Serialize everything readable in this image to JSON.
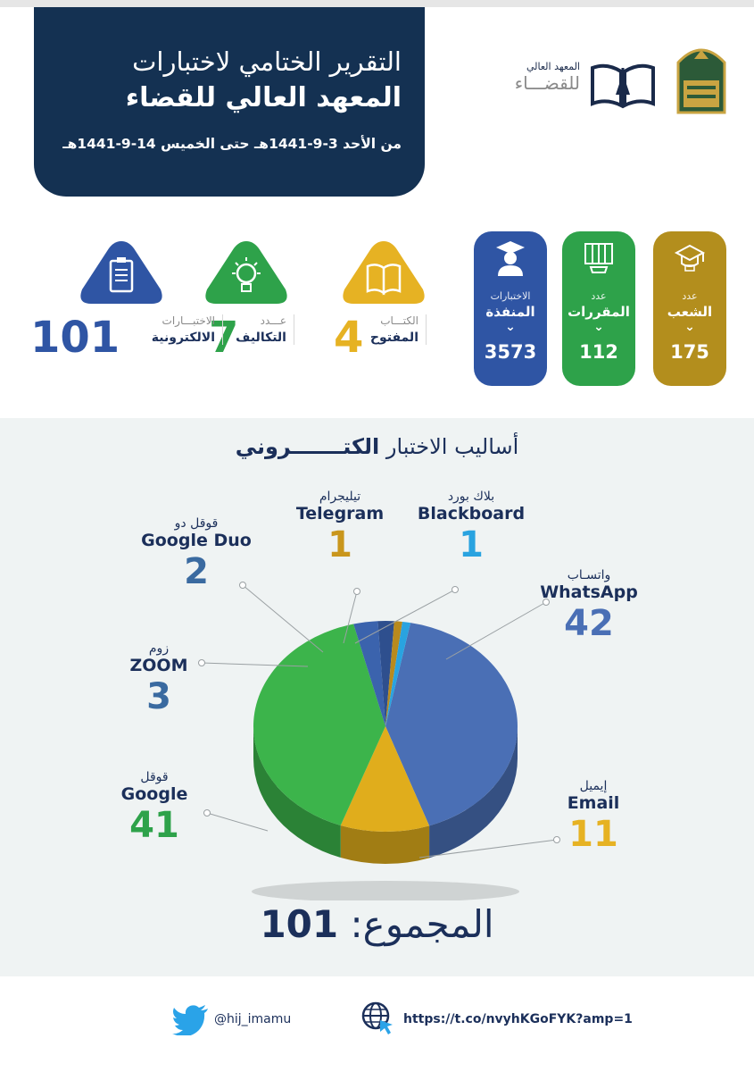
{
  "header": {
    "title_line1": "التقرير الختامي لاختبارات",
    "title_line2": "المعهد العالي للقضاء",
    "date_range": "من الأحد 3-9-1441هـ حتى الخميس 14-9-1441هـ"
  },
  "logo": {
    "institute_small": "المعهد العالي",
    "institute_big": "للقضـــاء"
  },
  "stats_pills": [
    {
      "label1": "عدد",
      "label2": "الشعب",
      "value": "175",
      "color": "#b38e1d",
      "icon": "graduation-building-icon"
    },
    {
      "label1": "عدد",
      "label2": "المقررات",
      "value": "112",
      "color": "#2ea24a",
      "icon": "books-icon"
    },
    {
      "label1": "الاختبارات",
      "label2": "المنفذة",
      "value": "3573",
      "color": "#2f55a4",
      "icon": "graduate-icon"
    }
  ],
  "stats_side": [
    {
      "label1": "الكتـــاب",
      "label2": "المفتوح",
      "value": "4",
      "color": "#e6b223",
      "icon": "open-book-icon"
    },
    {
      "label1": "عـــدد",
      "label2": "التكاليف",
      "value": "7",
      "color": "#2ea24a",
      "icon": "idea-bulb-icon"
    },
    {
      "label1": "الاختبـــارات",
      "label2": "الالكترونية",
      "value": "101",
      "color": "#2f55a4",
      "icon": "clipboard-icon"
    }
  ],
  "chart_title_light": "أساليب الاختبار",
  "chart_title_bold": "الكتـــــــروني",
  "chart_data": {
    "type": "pie",
    "title": "أساليب الاختبار الكتـــــــروني",
    "slices": [
      {
        "name_ar": "واتسـاب",
        "name_en": "WhatsApp",
        "value": 42,
        "color": "#4a6fb5",
        "value_color": "#4a6fb5"
      },
      {
        "name_ar": "إيميل",
        "name_en": "Email",
        "value": 11,
        "color": "#e0ad1c",
        "value_color": "#e6b223"
      },
      {
        "name_ar": "قوقل",
        "name_en": "Google",
        "value": 41,
        "color": "#3cb44b",
        "value_color": "#2ea24a"
      },
      {
        "name_ar": "زوم",
        "name_en": "ZOOM",
        "value": 3,
        "color": "#3b63ad",
        "value_color": "#3a6aa0"
      },
      {
        "name_ar": "قوقل دو",
        "name_en": "Google Duo",
        "value": 2,
        "color": "#2e4f8e",
        "value_color": "#3a6aa0"
      },
      {
        "name_ar": "تيليجرام",
        "name_en": "Telegram",
        "value": 1,
        "color": "#b88a1e",
        "value_color": "#c9961c"
      },
      {
        "name_ar": "بلاك بورد",
        "name_en": "Blackboard",
        "value": 1,
        "color": "#29a3e0",
        "value_color": "#29a3e0"
      }
    ],
    "total_label": "المجموع:",
    "total_value": "101"
  },
  "footer": {
    "twitter_handle": "@hij_imamu",
    "url": "https://t.co/nvyhKGoFYK?amp=1"
  }
}
